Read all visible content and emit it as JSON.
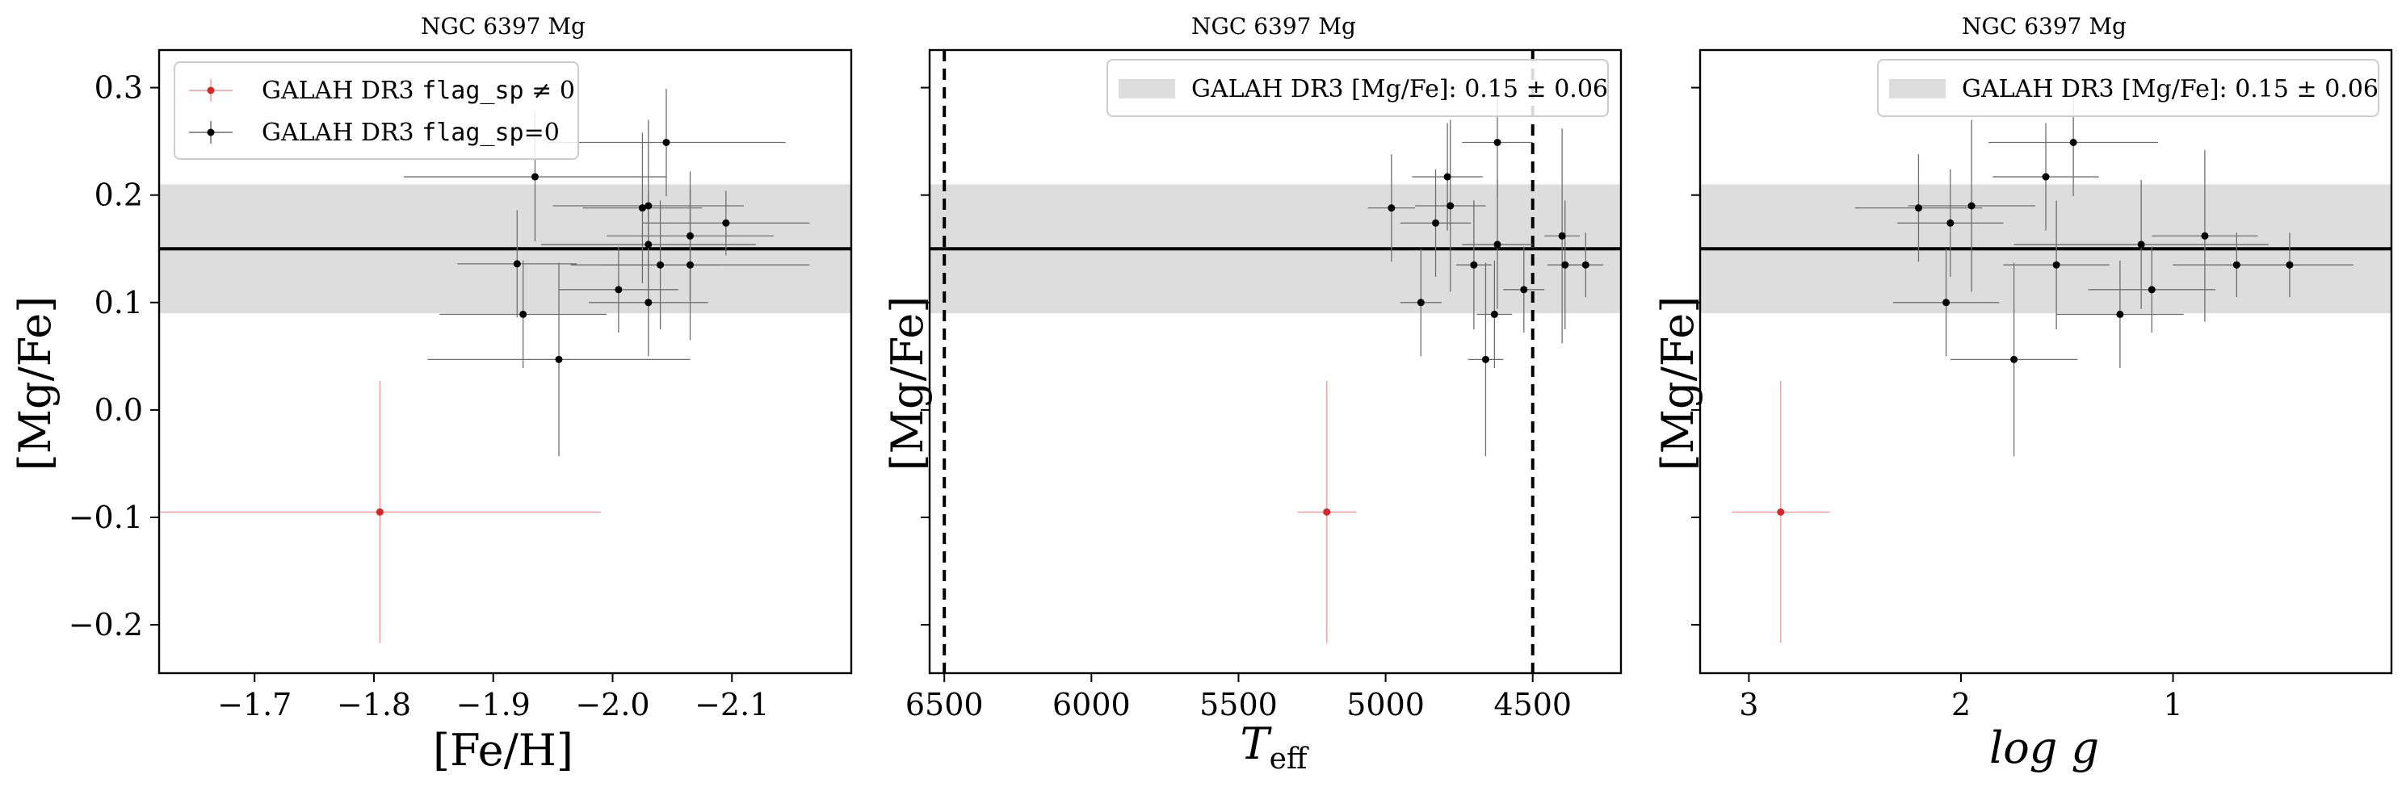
{
  "chart_data": [
    {
      "type": "scatter",
      "title": "NGC 6397 Mg",
      "xlabel": "[Fe/H]",
      "ylabel": "[Mg/Fe]",
      "xlim": [
        -1.62,
        -2.2
      ],
      "ylim": [
        -0.245,
        0.335
      ],
      "x_ticks": [
        -1.7,
        -1.8,
        -1.9,
        -2.0,
        -2.1
      ],
      "x_tick_labels": [
        "−1.7",
        "−1.8",
        "−1.9",
        "−2.0",
        "−2.1"
      ],
      "y_ticks": [
        0.3,
        0.2,
        0.1,
        0.0,
        -0.1,
        -0.2
      ],
      "y_tick_labels": [
        "0.3",
        "0.2",
        "0.1",
        "0.0",
        "−0.1",
        "−0.2"
      ],
      "band": {
        "center": 0.15,
        "err": 0.06
      },
      "legend": {
        "position": "upper-left",
        "entries": [
          {
            "label_pre": "GALAH DR3 ",
            "label_code": "flag_sp",
            "label_post": " ≠ 0",
            "color": "#d62728"
          },
          {
            "label_pre": "GALAH DR3 ",
            "label_code": "flag_sp",
            "label_post": "=0",
            "color": "#000000"
          }
        ]
      },
      "series": [
        {
          "name": "flag_sp ≠ 0",
          "color": "#d62728",
          "points": [
            {
              "x": -1.805,
              "y": -0.095,
              "xerr": 0.185,
              "yerr": 0.122
            }
          ]
        },
        {
          "name": "flag_sp=0",
          "color": "#000000",
          "points": [
            {
              "x": -1.935,
              "y": 0.217,
              "xerr": 0.11,
              "yerr": 0.06
            },
            {
              "x": -2.045,
              "y": 0.249,
              "xerr": 0.1,
              "yerr": 0.05
            },
            {
              "x": -2.03,
              "y": 0.19,
              "xerr": 0.08,
              "yerr": 0.08
            },
            {
              "x": -2.025,
              "y": 0.188,
              "xerr": 0.05,
              "yerr": 0.07
            },
            {
              "x": -2.095,
              "y": 0.174,
              "xerr": 0.07,
              "yerr": 0.03
            },
            {
              "x": -2.065,
              "y": 0.162,
              "xerr": 0.07,
              "yerr": 0.06
            },
            {
              "x": -2.03,
              "y": 0.154,
              "xerr": 0.09,
              "yerr": 0.05
            },
            {
              "x": -1.92,
              "y": 0.136,
              "xerr": 0.05,
              "yerr": 0.05
            },
            {
              "x": -2.04,
              "y": 0.135,
              "xerr": 0.05,
              "yerr": 0.06
            },
            {
              "x": -2.065,
              "y": 0.135,
              "xerr": 0.1,
              "yerr": 0.07
            },
            {
              "x": -2.005,
              "y": 0.112,
              "xerr": 0.05,
              "yerr": 0.04
            },
            {
              "x": -2.03,
              "y": 0.1,
              "xerr": 0.05,
              "yerr": 0.05
            },
            {
              "x": -1.925,
              "y": 0.089,
              "xerr": 0.07,
              "yerr": 0.05
            },
            {
              "x": -1.955,
              "y": 0.047,
              "xerr": 0.11,
              "yerr": 0.09
            }
          ]
        }
      ]
    },
    {
      "type": "scatter",
      "title": "NGC 6397 Mg",
      "xlabel_main": "T",
      "xlabel_sub": "eff",
      "ylabel": "[Mg/Fe]",
      "xlim": [
        6550,
        4200
      ],
      "ylim": [
        -0.245,
        0.335
      ],
      "x_ticks": [
        6500,
        6000,
        5500,
        5000,
        4500
      ],
      "x_tick_labels": [
        "6500",
        "6000",
        "5500",
        "5000",
        "4500"
      ],
      "y_ticks": [
        0.3,
        0.2,
        0.1,
        0.0,
        -0.1,
        -0.2
      ],
      "vlines": [
        6500,
        4500
      ],
      "band": {
        "center": 0.15,
        "err": 0.06
      },
      "legend": {
        "position": "upper-right",
        "entries": [
          {
            "label": "GALAH DR3 [Mg/Fe]: 0.15 ± 0.06",
            "color": "#dddddd"
          }
        ]
      },
      "series": [
        {
          "name": "flag_sp ≠ 0",
          "color": "#d62728",
          "points": [
            {
              "x": 5200,
              "y": -0.095,
              "xerr": 100,
              "yerr": 0.122
            }
          ]
        },
        {
          "name": "flag_sp=0",
          "color": "#000000",
          "points": [
            {
              "x": 4980,
              "y": 0.188,
              "xerr": 80,
              "yerr": 0.05
            },
            {
              "x": 4830,
              "y": 0.174,
              "xerr": 120,
              "yerr": 0.05
            },
            {
              "x": 4790,
              "y": 0.217,
              "xerr": 120,
              "yerr": 0.05
            },
            {
              "x": 4780,
              "y": 0.19,
              "xerr": 120,
              "yerr": 0.08
            },
            {
              "x": 4620,
              "y": 0.249,
              "xerr": 120,
              "yerr": 0.05
            },
            {
              "x": 4400,
              "y": 0.162,
              "xerr": 60,
              "yerr": 0.1
            },
            {
              "x": 4620,
              "y": 0.154,
              "xerr": 120,
              "yerr": 0.06
            },
            {
              "x": 4700,
              "y": 0.135,
              "xerr": 60,
              "yerr": 0.06
            },
            {
              "x": 4390,
              "y": 0.135,
              "xerr": 60,
              "yerr": 0.06
            },
            {
              "x": 4320,
              "y": 0.135,
              "xerr": 60,
              "yerr": 0.03
            },
            {
              "x": 4530,
              "y": 0.112,
              "xerr": 70,
              "yerr": 0.04
            },
            {
              "x": 4880,
              "y": 0.1,
              "xerr": 70,
              "yerr": 0.05
            },
            {
              "x": 4630,
              "y": 0.089,
              "xerr": 60,
              "yerr": 0.05
            },
            {
              "x": 4660,
              "y": 0.047,
              "xerr": 60,
              "yerr": 0.09
            }
          ]
        }
      ]
    },
    {
      "type": "scatter",
      "title": "NGC 6397 Mg",
      "xlabel": "log g",
      "ylabel": "[Mg/Fe]",
      "xlim": [
        3.23,
        -0.03
      ],
      "ylim": [
        -0.245,
        0.335
      ],
      "x_ticks": [
        3,
        2,
        1
      ],
      "x_tick_labels": [
        "3",
        "2",
        "1"
      ],
      "y_ticks": [
        0.3,
        0.2,
        0.1,
        0.0,
        -0.1,
        -0.2
      ],
      "band": {
        "center": 0.15,
        "err": 0.06
      },
      "legend": {
        "position": "upper-right",
        "entries": [
          {
            "label": "GALAH DR3 [Mg/Fe]: 0.15 ± 0.06",
            "color": "#dddddd"
          }
        ]
      },
      "series": [
        {
          "name": "flag_sp ≠ 0",
          "color": "#d62728",
          "points": [
            {
              "x": 2.85,
              "y": -0.095,
              "xerr": 0.23,
              "yerr": 0.122
            }
          ]
        },
        {
          "name": "flag_sp=0",
          "color": "#000000",
          "points": [
            {
              "x": 1.47,
              "y": 0.249,
              "xerr": 0.4,
              "yerr": 0.05
            },
            {
              "x": 1.6,
              "y": 0.217,
              "xerr": 0.25,
              "yerr": 0.05
            },
            {
              "x": 1.95,
              "y": 0.19,
              "xerr": 0.3,
              "yerr": 0.08
            },
            {
              "x": 2.2,
              "y": 0.188,
              "xerr": 0.3,
              "yerr": 0.05
            },
            {
              "x": 2.05,
              "y": 0.174,
              "xerr": 0.25,
              "yerr": 0.05
            },
            {
              "x": 0.85,
              "y": 0.162,
              "xerr": 0.25,
              "yerr": 0.08
            },
            {
              "x": 1.15,
              "y": 0.154,
              "xerr": 0.6,
              "yerr": 0.06
            },
            {
              "x": 1.55,
              "y": 0.135,
              "xerr": 0.25,
              "yerr": 0.06
            },
            {
              "x": 0.7,
              "y": 0.135,
              "xerr": 0.3,
              "yerr": 0.03
            },
            {
              "x": 0.45,
              "y": 0.135,
              "xerr": 0.3,
              "yerr": 0.03
            },
            {
              "x": 1.1,
              "y": 0.112,
              "xerr": 0.3,
              "yerr": 0.04
            },
            {
              "x": 2.07,
              "y": 0.1,
              "xerr": 0.25,
              "yerr": 0.05
            },
            {
              "x": 1.25,
              "y": 0.089,
              "xerr": 0.3,
              "yerr": 0.05
            },
            {
              "x": 1.75,
              "y": 0.047,
              "xerr": 0.3,
              "yerr": 0.09
            }
          ]
        }
      ]
    }
  ]
}
